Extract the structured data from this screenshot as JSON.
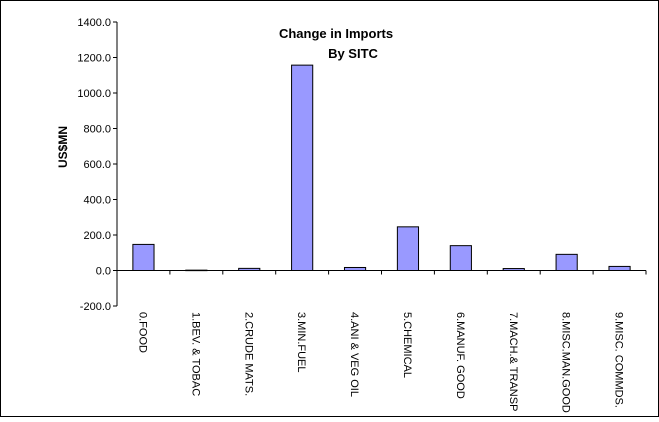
{
  "chart_data": {
    "type": "bar",
    "title": "Change in Imports",
    "subtitle": "By SITC",
    "ylabel": "US$MN",
    "xlabel": "",
    "ylim": [
      -200,
      1400
    ],
    "yticks": [
      "-200.0",
      "0.0",
      "200.0",
      "400.0",
      "600.0",
      "800.0",
      "1000.0",
      "1200.0",
      "1400.0"
    ],
    "ytick_values": [
      -200,
      0,
      200,
      400,
      600,
      800,
      1000,
      1200,
      1400
    ],
    "categories": [
      "0.FOOD",
      "1.BEV. & TOBAC",
      "2.CRUDE MATS.",
      "3.MIN.FUEL",
      "4.ANI & VEG OIL",
      "5.CHEMICAL",
      "6.MANUF. GOOD",
      "7.MACH.& TRANSP",
      "8.MISC.MAN.GOOD",
      "9.MISC. COMMDS."
    ],
    "values": [
      147,
      2,
      12,
      1157,
      17,
      246,
      140,
      11,
      91,
      23
    ],
    "bar_color": "#9999ff",
    "bar_stroke": "#000000",
    "grid": false,
    "legend": "none"
  }
}
